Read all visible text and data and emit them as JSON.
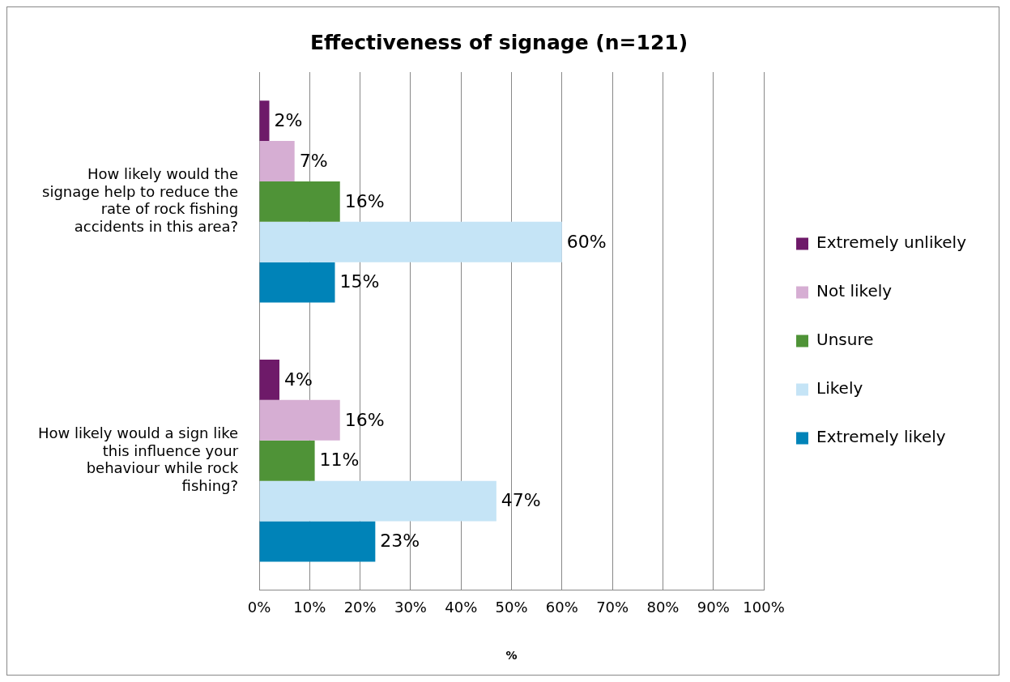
{
  "chart_data": {
    "type": "bar",
    "orientation": "horizontal",
    "title": "Effectiveness of signage (n=121)",
    "xlabel": "%",
    "categories": [
      "How likely would the signage help to reduce the rate of rock fishing accidents in this area?",
      "How likely would a sign like this influence your behaviour while rock fishing?"
    ],
    "series": [
      {
        "name": "Extremely unlikely",
        "color": "#6e1a69",
        "values": [
          2,
          4
        ],
        "value_labels": [
          "2%",
          "4%"
        ]
      },
      {
        "name": "Not likely",
        "color": "#d6aed3",
        "values": [
          7,
          16
        ],
        "value_labels": [
          "7%",
          "16%"
        ]
      },
      {
        "name": "Unsure",
        "color": "#4f9337",
        "values": [
          16,
          11
        ],
        "value_labels": [
          "16%",
          "11%"
        ]
      },
      {
        "name": "Likely",
        "color": "#c5e4f6",
        "values": [
          60,
          47
        ],
        "value_labels": [
          "60%",
          "47%"
        ]
      },
      {
        "name": "Extremely likely",
        "color": "#0083b8",
        "values": [
          15,
          23
        ],
        "value_labels": [
          "15%",
          "23%"
        ]
      }
    ],
    "xlim": [
      0,
      100
    ],
    "xticks": [
      {
        "value": 0,
        "label": "0%"
      },
      {
        "value": 10,
        "label": "10%"
      },
      {
        "value": 20,
        "label": "20%"
      },
      {
        "value": 30,
        "label": "30%"
      },
      {
        "value": 40,
        "label": "40%"
      },
      {
        "value": 50,
        "label": "50%"
      },
      {
        "value": 60,
        "label": "60%"
      },
      {
        "value": 70,
        "label": "70%"
      },
      {
        "value": 80,
        "label": "80%"
      },
      {
        "value": 90,
        "label": "90%"
      },
      {
        "value": 100,
        "label": "100%"
      }
    ],
    "grid": "x",
    "legend": "right"
  }
}
